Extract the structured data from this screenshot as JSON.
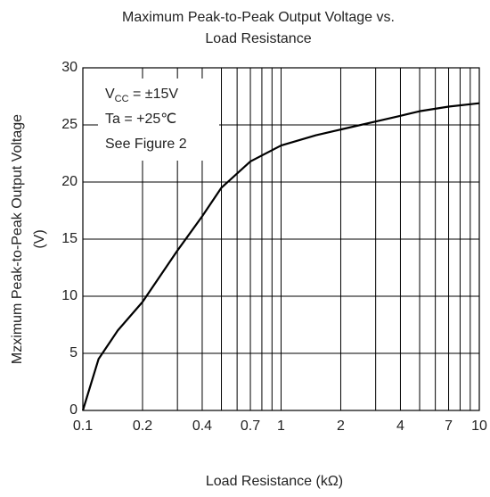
{
  "chart_data": {
    "type": "line",
    "title": [
      "Maximum Peak-to-Peak Output Voltage vs.",
      "Load Resistance"
    ],
    "y_label": [
      "Mzximum Peak-to-Peak Output Voltage",
      "(V)"
    ],
    "x_label": "Load Resistance (kΩ)",
    "annotation": {
      "symbol": "V",
      "subscript": "CC",
      "rest": " = ±15V",
      "lines": [
        "Ta = +25℃",
        "See Figure 2"
      ]
    },
    "x_log": true,
    "xlim": [
      0.1,
      10
    ],
    "xticks": [
      0.1,
      0.2,
      0.4,
      0.7,
      1,
      2,
      4,
      7,
      10
    ],
    "xminor": [
      0.3,
      0.5,
      0.6,
      0.8,
      0.9,
      3,
      5,
      6,
      8,
      9
    ],
    "ylim": [
      0,
      30
    ],
    "yticks": [
      0,
      5,
      10,
      15,
      20,
      25,
      30
    ],
    "grid": true,
    "series": [
      {
        "color": "#000000",
        "x": [
          0.1,
          0.12,
          0.15,
          0.2,
          0.3,
          0.4,
          0.5,
          0.7,
          1,
          1.5,
          2,
          3,
          4,
          5,
          7,
          10
        ],
        "values": [
          0,
          4.5,
          7,
          9.5,
          14,
          17,
          19.5,
          21.8,
          23.2,
          24.1,
          24.6,
          25.3,
          25.8,
          26.2,
          26.6,
          26.9
        ]
      }
    ]
  }
}
